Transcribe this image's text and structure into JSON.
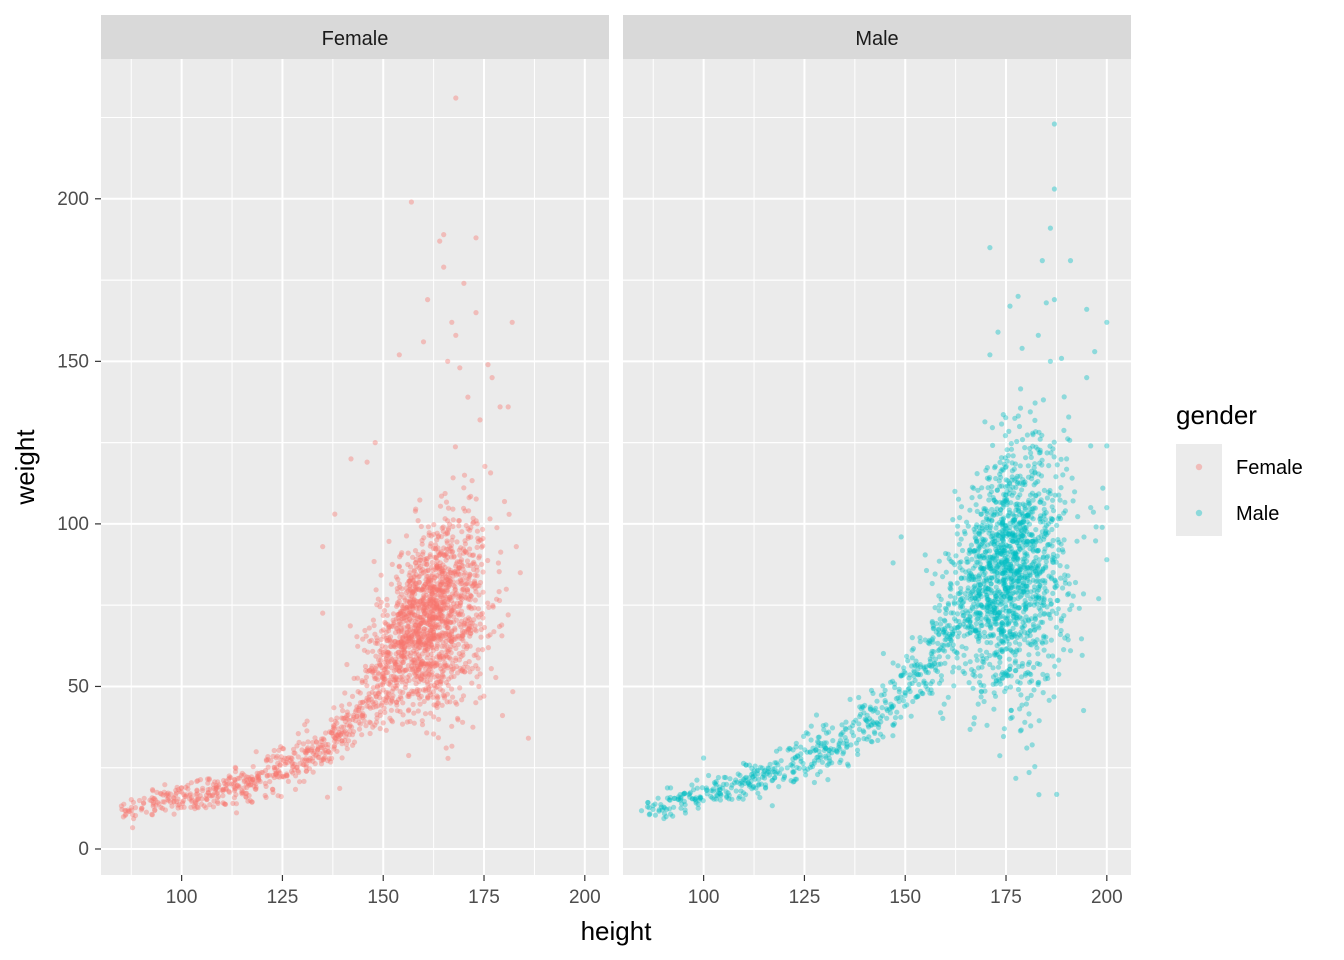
{
  "chart_data": {
    "type": "scatter",
    "title": "",
    "xlabel": "height",
    "ylabel": "weight",
    "xlim": [
      80,
      206
    ],
    "ylim": [
      -8,
      243
    ],
    "x_ticks": [
      100,
      125,
      150,
      175,
      200
    ],
    "y_ticks": [
      0,
      50,
      100,
      150,
      200
    ],
    "grid": true,
    "facet_by": "gender",
    "legend": {
      "title": "gender",
      "position": "right",
      "entries": [
        {
          "label": "Female",
          "color": "#F8766D"
        },
        {
          "label": "Male",
          "color": "#00BFC4"
        }
      ]
    },
    "panels": [
      {
        "label": "Female",
        "color": "#F8766D",
        "trend": [
          [
            84,
            11
          ],
          [
            95,
            15
          ],
          [
            105,
            17
          ],
          [
            115,
            20
          ],
          [
            125,
            25
          ],
          [
            135,
            31
          ],
          [
            145,
            42
          ],
          [
            152,
            55
          ],
          [
            160,
            68
          ],
          [
            167,
            78
          ],
          [
            175,
            85
          ],
          [
            182,
            90
          ]
        ],
        "cloud": {
          "x_mean": 162,
          "x_sd": 7,
          "y_mean": 72,
          "y_sd": 15,
          "count": 1500
        },
        "outliers": [
          [
            168,
            231
          ],
          [
            157,
            199
          ],
          [
            165,
            189
          ],
          [
            173,
            188
          ],
          [
            164,
            187
          ],
          [
            165,
            179
          ],
          [
            170,
            174
          ],
          [
            161,
            169
          ],
          [
            167,
            162
          ],
          [
            173,
            165
          ],
          [
            182,
            162
          ],
          [
            168,
            158
          ],
          [
            160,
            156
          ],
          [
            154,
            152
          ],
          [
            166,
            150
          ],
          [
            176,
            149
          ],
          [
            169,
            148
          ],
          [
            177,
            145
          ],
          [
            179,
            136
          ],
          [
            181,
            136
          ],
          [
            171,
            139
          ],
          [
            174,
            132
          ],
          [
            148,
            125
          ],
          [
            146,
            119
          ],
          [
            142,
            120
          ],
          [
            138,
            103
          ],
          [
            135,
            93
          ],
          [
            183,
            93
          ],
          [
            181,
            72
          ],
          [
            184,
            85
          ]
        ]
      },
      {
        "label": "Male",
        "color": "#00BFC4",
        "trend": [
          [
            84,
            11
          ],
          [
            95,
            15
          ],
          [
            105,
            18
          ],
          [
            115,
            22
          ],
          [
            125,
            28
          ],
          [
            135,
            34
          ],
          [
            145,
            43
          ],
          [
            152,
            52
          ],
          [
            160,
            66
          ],
          [
            168,
            78
          ],
          [
            175,
            84
          ],
          [
            182,
            88
          ],
          [
            190,
            95
          ]
        ],
        "cloud": {
          "x_mean": 176,
          "x_sd": 7,
          "y_mean": 85,
          "y_sd": 16,
          "count": 1500
        },
        "outliers": [
          [
            187,
            223
          ],
          [
            187,
            203
          ],
          [
            186,
            191
          ],
          [
            191,
            181
          ],
          [
            184,
            181
          ],
          [
            171,
            185
          ],
          [
            187,
            169
          ],
          [
            185,
            168
          ],
          [
            178,
            170
          ],
          [
            176,
            167
          ],
          [
            195,
            166
          ],
          [
            200,
            162
          ],
          [
            173,
            159
          ],
          [
            183,
            158
          ],
          [
            179,
            154
          ],
          [
            171,
            152
          ],
          [
            197,
            153
          ],
          [
            186,
            150
          ],
          [
            195,
            145
          ],
          [
            196,
            124
          ],
          [
            200,
            124
          ],
          [
            199,
            111
          ],
          [
            200,
            105
          ],
          [
            196,
            105
          ],
          [
            200,
            89
          ],
          [
            198,
            77
          ],
          [
            191,
            61
          ],
          [
            172,
            43
          ],
          [
            149,
            96
          ],
          [
            147,
            88
          ],
          [
            100,
            28
          ]
        ]
      }
    ]
  }
}
